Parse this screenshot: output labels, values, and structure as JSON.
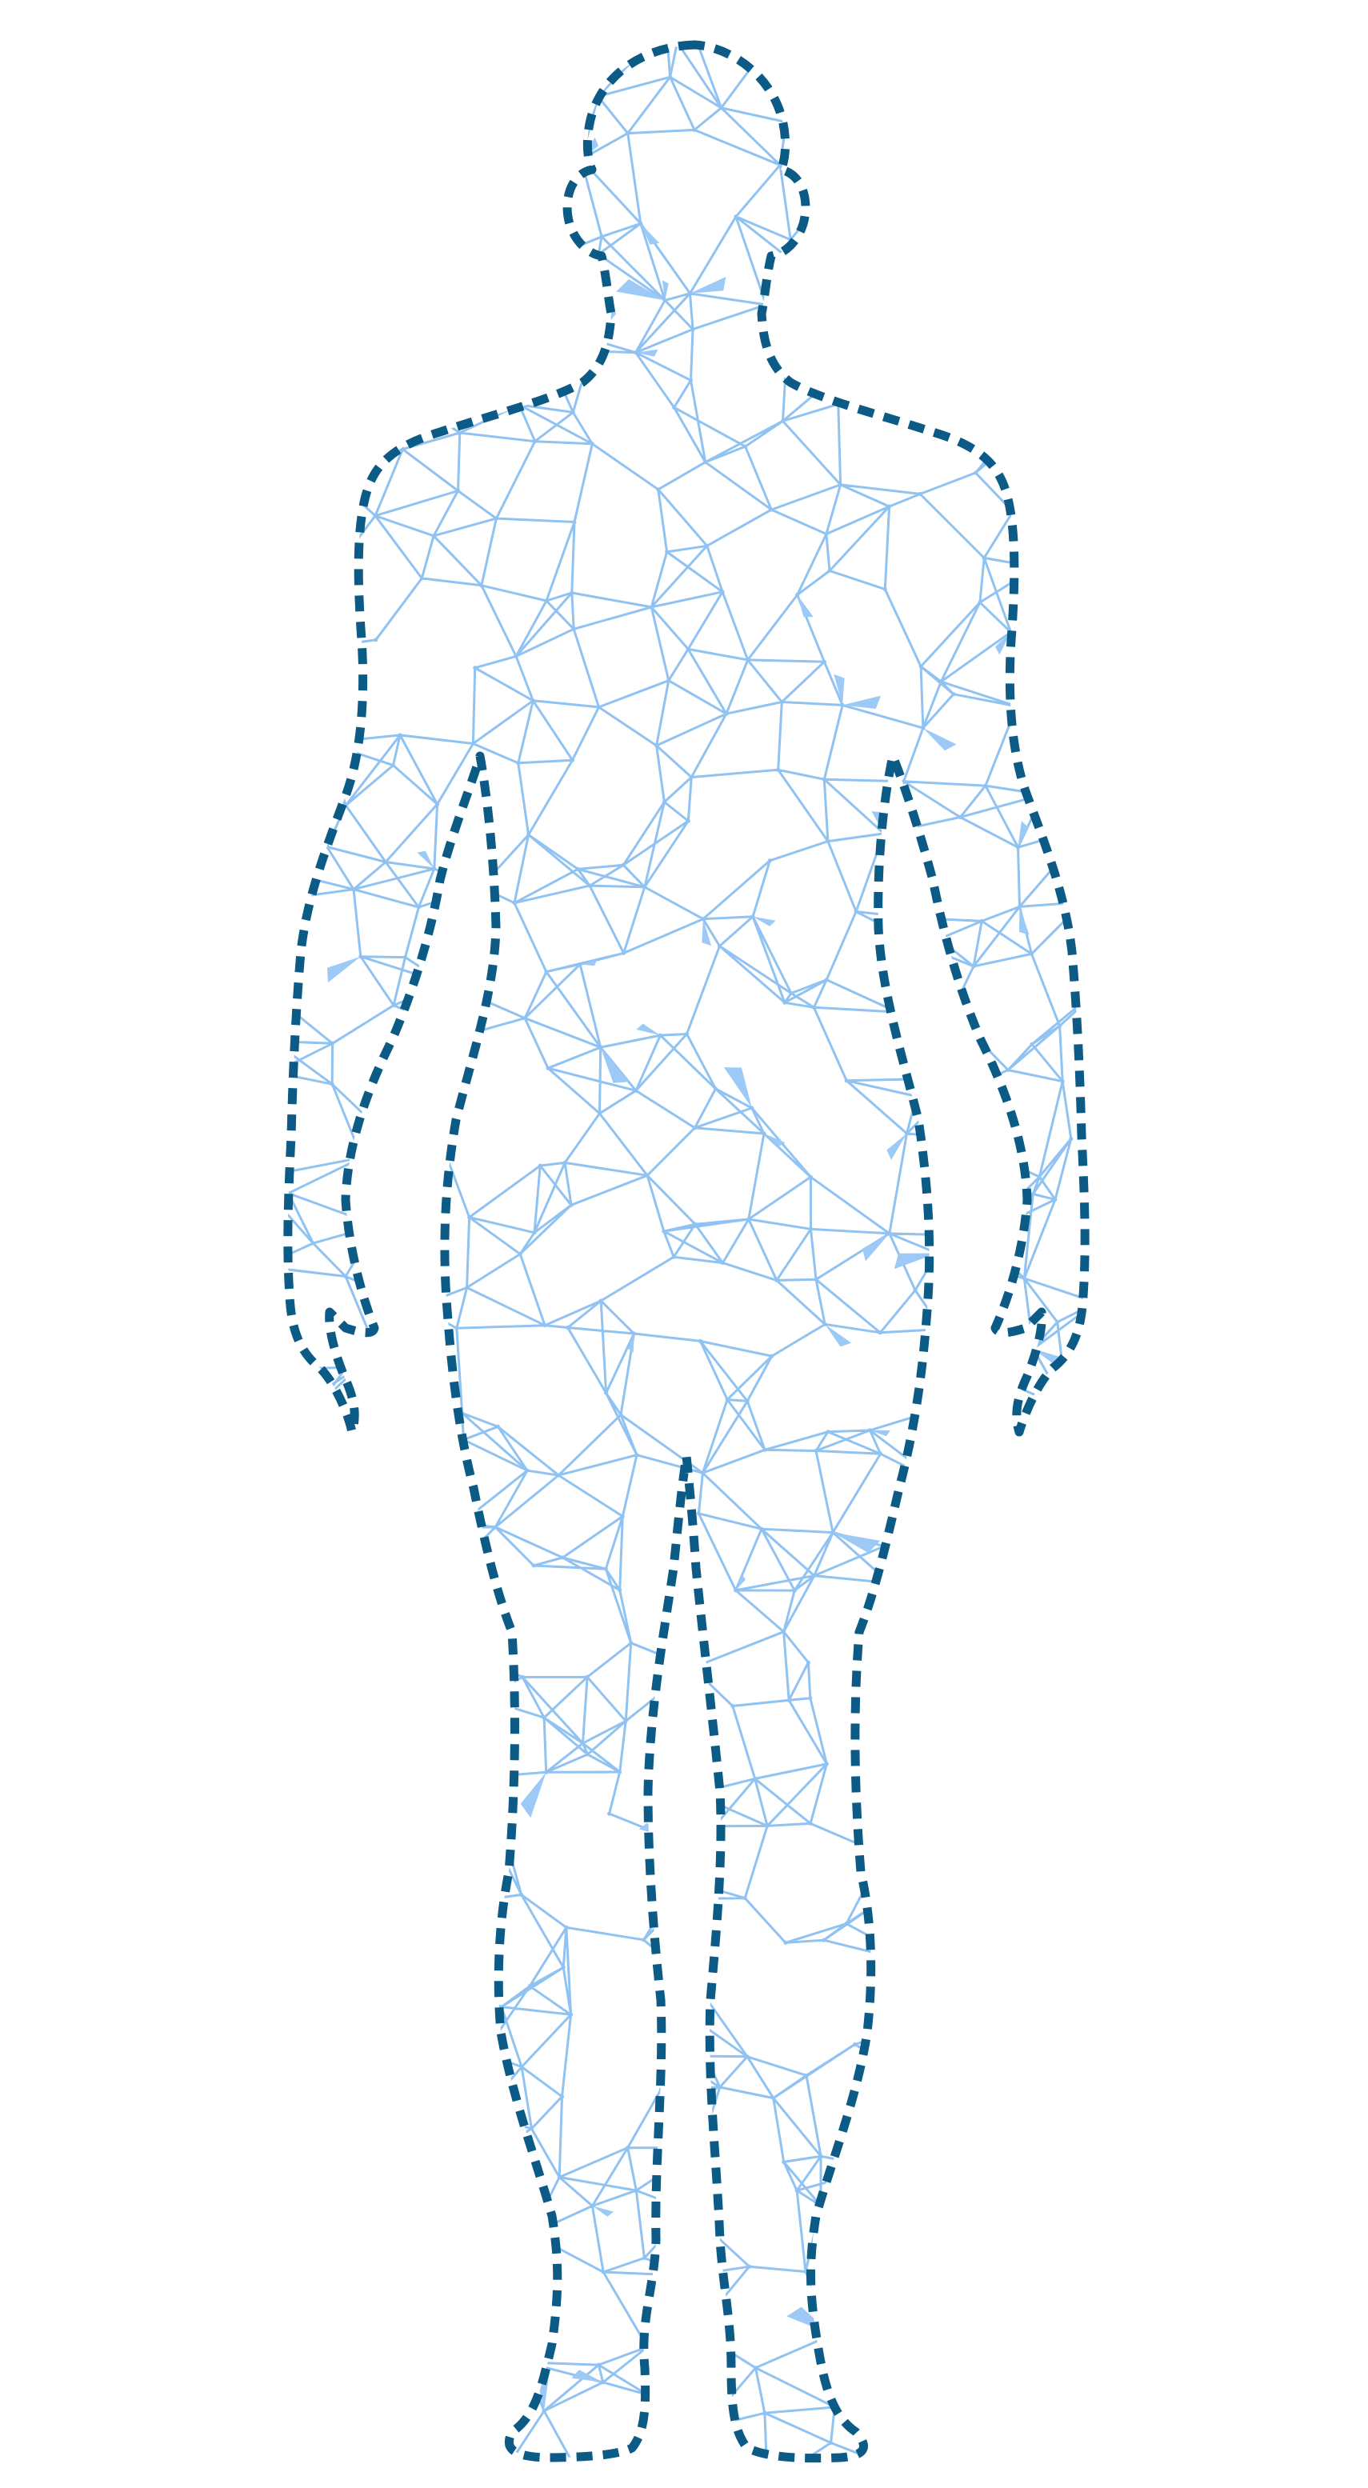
{
  "illustration": {
    "subject": "human-body-figure",
    "style": "low-poly-wireframe",
    "colors": {
      "background": "#ffffff",
      "mesh": "#90c2f2",
      "mesh_fill": "#9cc9f5",
      "outline": "#0b5b86"
    }
  }
}
